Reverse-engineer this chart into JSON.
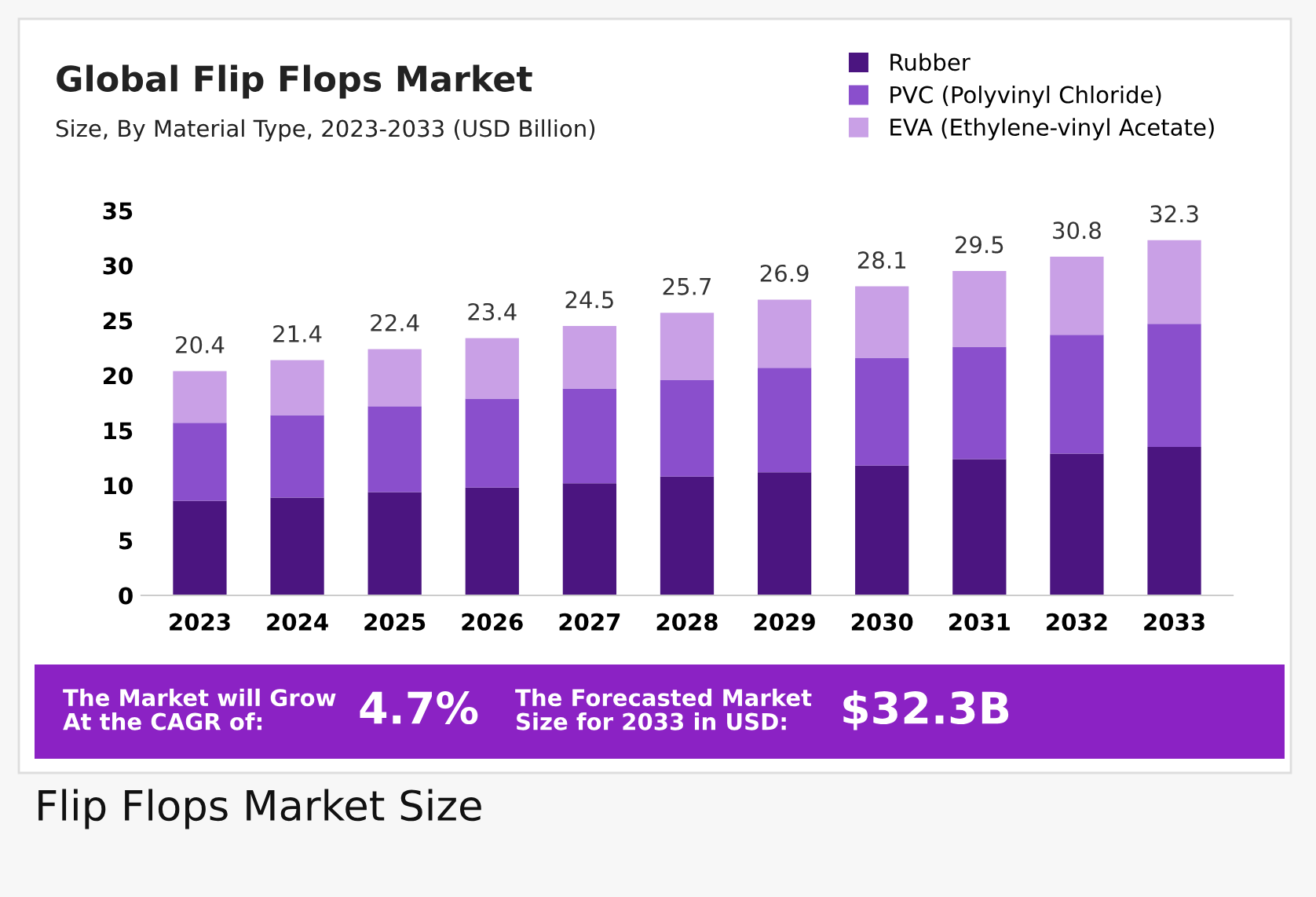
{
  "chart_data": {
    "type": "bar",
    "stacked": true,
    "title": "Global Flip Flops Market",
    "subtitle": "Size, By Material Type, 2023-2033 (USD Billion)",
    "categories": [
      "2023",
      "2024",
      "2025",
      "2026",
      "2027",
      "2028",
      "2029",
      "2030",
      "2031",
      "2032",
      "2033"
    ],
    "series": [
      {
        "name": "Rubber",
        "color": "#4b1580",
        "values": [
          8.6,
          8.9,
          9.4,
          9.8,
          10.2,
          10.8,
          11.2,
          11.8,
          12.4,
          12.9,
          13.5
        ]
      },
      {
        "name": "PVC (Polyvinyl Chloride)",
        "color": "#8a4fcc",
        "values": [
          7.1,
          7.5,
          7.8,
          8.1,
          8.6,
          8.8,
          9.5,
          9.8,
          10.2,
          10.8,
          11.2
        ]
      },
      {
        "name": "EVA (Ethylene-vinyl Acetate)",
        "color": "#c9a0e6",
        "values": [
          4.7,
          5.0,
          5.2,
          5.5,
          5.7,
          6.1,
          6.2,
          6.5,
          6.9,
          7.1,
          7.6
        ]
      }
    ],
    "totals": [
      "20.4",
      "21.4",
      "22.4",
      "23.4",
      "24.5",
      "25.7",
      "26.9",
      "28.1",
      "29.5",
      "30.8",
      "32.3"
    ],
    "ylim": [
      0,
      35
    ],
    "yticks": [
      0,
      5,
      10,
      15,
      20,
      25,
      30,
      35
    ],
    "grid": false,
    "legend": "top right",
    "marker": "square",
    "annotations": [
      "The Market will Grow\nAt the CAGR of:",
      "4.7%",
      "The Forecasted Market\nSize for 2033 in USD:",
      "$32.3B",
      "Flip Flops Market Size"
    ]
  }
}
